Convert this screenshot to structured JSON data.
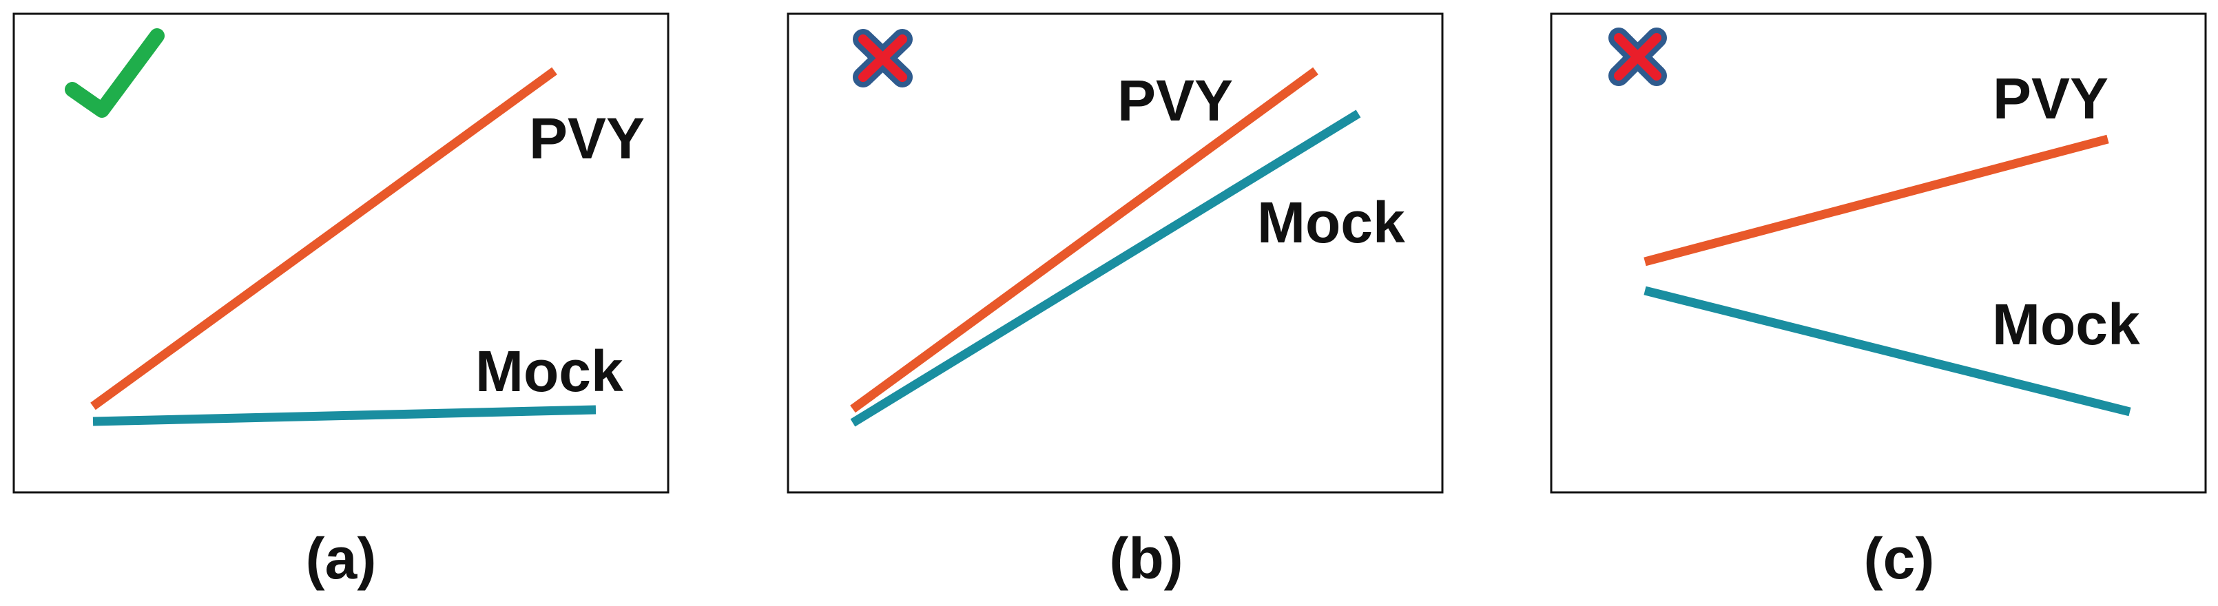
{
  "colors": {
    "pvy": "#e8582a",
    "mock": "#1a8ea0",
    "check": "#1fae4b",
    "cross_fill": "#ea1e2a",
    "cross_outline": "#2f5b8e",
    "frame": "#111111"
  },
  "panels": [
    {
      "caption": "(a)",
      "status_icon": "checkmark-icon",
      "series": [
        {
          "name": "PVY",
          "color_key": "pvy"
        },
        {
          "name": "Mock",
          "color_key": "mock"
        }
      ]
    },
    {
      "caption": "(b)",
      "status_icon": "cross-icon",
      "series": [
        {
          "name": "PVY",
          "color_key": "pvy"
        },
        {
          "name": "Mock",
          "color_key": "mock"
        }
      ]
    },
    {
      "caption": "(c)",
      "status_icon": "cross-icon",
      "series": [
        {
          "name": "PVY",
          "color_key": "pvy"
        },
        {
          "name": "Mock",
          "color_key": "mock"
        }
      ]
    }
  ]
}
